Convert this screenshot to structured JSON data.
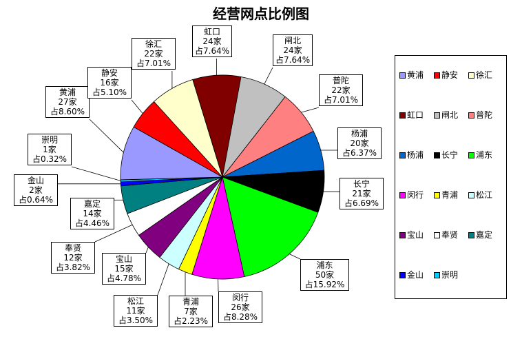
{
  "chart_data": {
    "type": "pie",
    "title": "经营网点比例图",
    "slices": [
      {
        "name": "虹口",
        "count_label": "24家",
        "pct_label": "占7.64%",
        "value": 24,
        "color": "#800000"
      },
      {
        "name": "闸北",
        "count_label": "24家",
        "pct_label": "占7.64%",
        "value": 24,
        "color": "#C0C0C0"
      },
      {
        "name": "普陀",
        "count_label": "22家",
        "pct_label": "占7.01%",
        "value": 22,
        "color": "#FF8080"
      },
      {
        "name": "杨浦",
        "count_label": "20家",
        "pct_label": "占6.37%",
        "value": 20,
        "color": "#0066CC"
      },
      {
        "name": "长宁",
        "count_label": "21家",
        "pct_label": "占6.69%",
        "value": 21,
        "color": "#000000"
      },
      {
        "name": "浦东",
        "count_label": "50家",
        "pct_label": "占15.92%",
        "value": 50,
        "color": "#00FF00"
      },
      {
        "name": "闵行",
        "count_label": "26家",
        "pct_label": "占8.28%",
        "value": 26,
        "color": "#FF00FF"
      },
      {
        "name": "青浦",
        "count_label": "7家",
        "pct_label": "占2.23%",
        "value": 7,
        "color": "#FFFF00"
      },
      {
        "name": "松江",
        "count_label": "11家",
        "pct_label": "占3.50%",
        "value": 11,
        "color": "#CCFFFF"
      },
      {
        "name": "宝山",
        "count_label": "15家",
        "pct_label": "占4.78%",
        "value": 15,
        "color": "#800080"
      },
      {
        "name": "奉贤",
        "count_label": "12家",
        "pct_label": "占3.82%",
        "value": 12,
        "color": "#FFFFFF"
      },
      {
        "name": "嘉定",
        "count_label": "14家",
        "pct_label": "占4.46%",
        "value": 14,
        "color": "#008080"
      },
      {
        "name": "金山",
        "count_label": "2家",
        "pct_label": "占0.64%",
        "value": 2,
        "color": "#0000FF"
      },
      {
        "name": "崇明",
        "count_label": "1家",
        "pct_label": "占0.32%",
        "value": 1,
        "color": "#00CCFF"
      },
      {
        "name": "黄浦",
        "count_label": "27家",
        "pct_label": "占8.60%",
        "value": 27,
        "color": "#9999FF"
      },
      {
        "name": "静安",
        "count_label": "16家",
        "pct_label": "占5.10%",
        "value": 16,
        "color": "#FF0000"
      },
      {
        "name": "徐汇",
        "count_label": "22家",
        "pct_label": "占7.01%",
        "value": 22,
        "color": "#FFFFCC"
      }
    ],
    "legend_order": [
      "黄浦",
      "静安",
      "徐汇",
      "虹口",
      "闸北",
      "普陀",
      "杨浦",
      "长宁",
      "浦东",
      "闵行",
      "青浦",
      "松江",
      "宝山",
      "奉贤",
      "嘉定",
      "金山",
      "崇明"
    ],
    "legend_placement": "right"
  }
}
